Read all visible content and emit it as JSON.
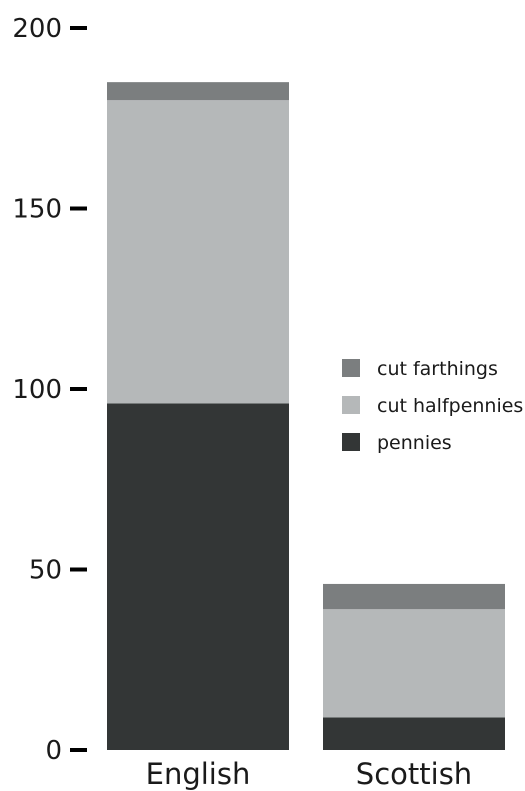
{
  "chart_data": {
    "type": "bar",
    "stacked": true,
    "categories": [
      "English",
      "Scottish"
    ],
    "series": [
      {
        "name": "pennies",
        "color": "#333636",
        "values": [
          96,
          9
        ]
      },
      {
        "name": "cut halfpennies",
        "color": "#b5b8b9",
        "values": [
          84,
          30
        ]
      },
      {
        "name": "cut farthings",
        "color": "#7b7e7f",
        "values": [
          5,
          7
        ]
      }
    ],
    "ylim": [
      0,
      200
    ],
    "yticks": [
      "0",
      "50",
      "100",
      "150",
      "200"
    ],
    "legend_order": [
      "cut farthings",
      "cut halfpennies",
      "pennies"
    ],
    "legend_position": "right",
    "grid": false,
    "title": "",
    "xlabel": "",
    "ylabel": ""
  }
}
